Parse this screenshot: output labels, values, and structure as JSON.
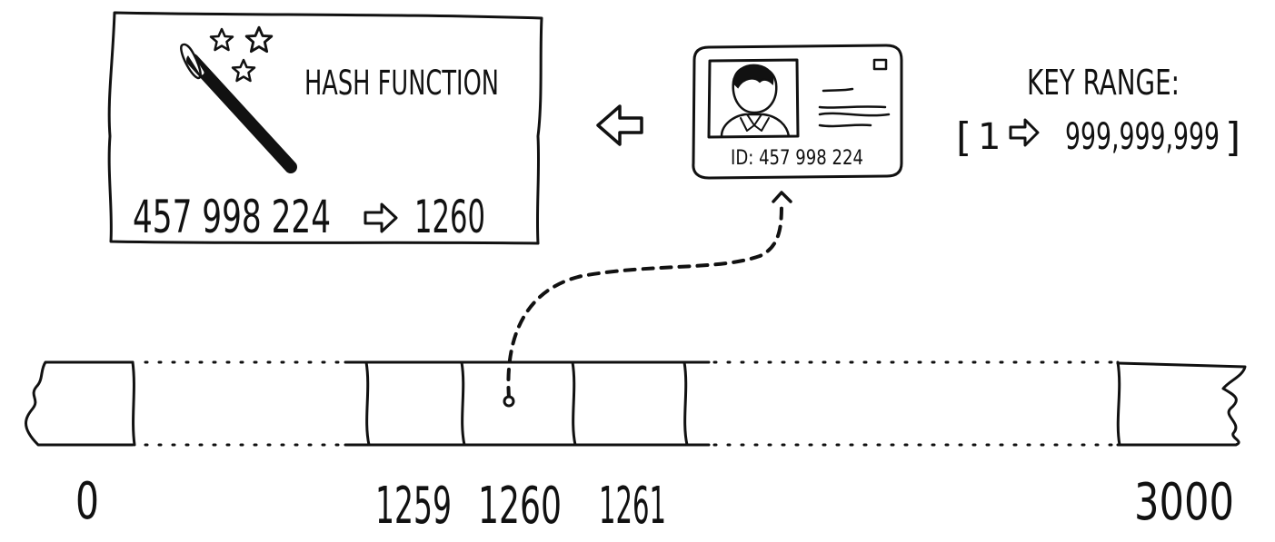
{
  "hash_panel": {
    "title": "HASH FUNCTION",
    "mapping_input": "457 998 224",
    "mapping_output": "1260"
  },
  "id_card": {
    "id_label": "ID: 457 998 224"
  },
  "key_range": {
    "label": "KEY RANGE:",
    "open_bracket": "[",
    "start": "1",
    "end": "999,999,999",
    "close_bracket": "]"
  },
  "array": {
    "index_labels": [
      "0",
      "1259",
      "1260",
      "1261",
      "3000"
    ]
  },
  "icons": [
    "magic-wand-icon",
    "star-icon",
    "left-arrow-icon",
    "right-arrow-icon",
    "person-avatar-icon"
  ]
}
